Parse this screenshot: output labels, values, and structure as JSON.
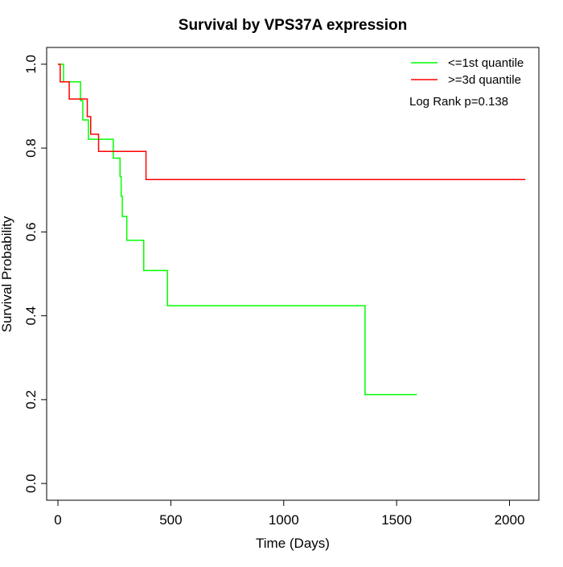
{
  "chart_data": {
    "type": "line",
    "title": "Survival by VPS37A expression",
    "xlabel": "Time (Days)",
    "ylabel": "Survival Probability",
    "xlim": [
      -50,
      2130
    ],
    "ylim": [
      -0.04,
      1.04
    ],
    "xticks": [
      0,
      500,
      1000,
      1500,
      2000
    ],
    "xtick_labels": [
      "0",
      "500",
      "1000",
      "1500",
      "2000"
    ],
    "yticks": [
      0.0,
      0.2,
      0.4,
      0.6,
      0.8,
      1.0
    ],
    "ytick_labels": [
      "0.0",
      "0.2",
      "0.4",
      "0.6",
      "0.8",
      "1.0"
    ],
    "grid": false,
    "legend_position": "top-right",
    "annotation": "Log Rank p=0.138",
    "series": [
      {
        "name": "<=1st quantile",
        "color": "#00ff00",
        "step": true,
        "x": [
          0,
          25,
          100,
          110,
          135,
          245,
          275,
          280,
          285,
          305,
          380,
          485,
          560,
          1360,
          1590
        ],
        "y": [
          1.0,
          0.958,
          0.913,
          0.867,
          0.821,
          0.776,
          0.732,
          0.685,
          0.637,
          0.58,
          0.508,
          0.424,
          0.424,
          0.212,
          0.212
        ]
      },
      {
        "name": ">=3d quantile",
        "color": "#ff0000",
        "step": true,
        "x": [
          0,
          10,
          50,
          130,
          145,
          180,
          390,
          2070
        ],
        "y": [
          1.0,
          0.958,
          0.917,
          0.875,
          0.833,
          0.792,
          0.725,
          0.725
        ]
      }
    ]
  }
}
